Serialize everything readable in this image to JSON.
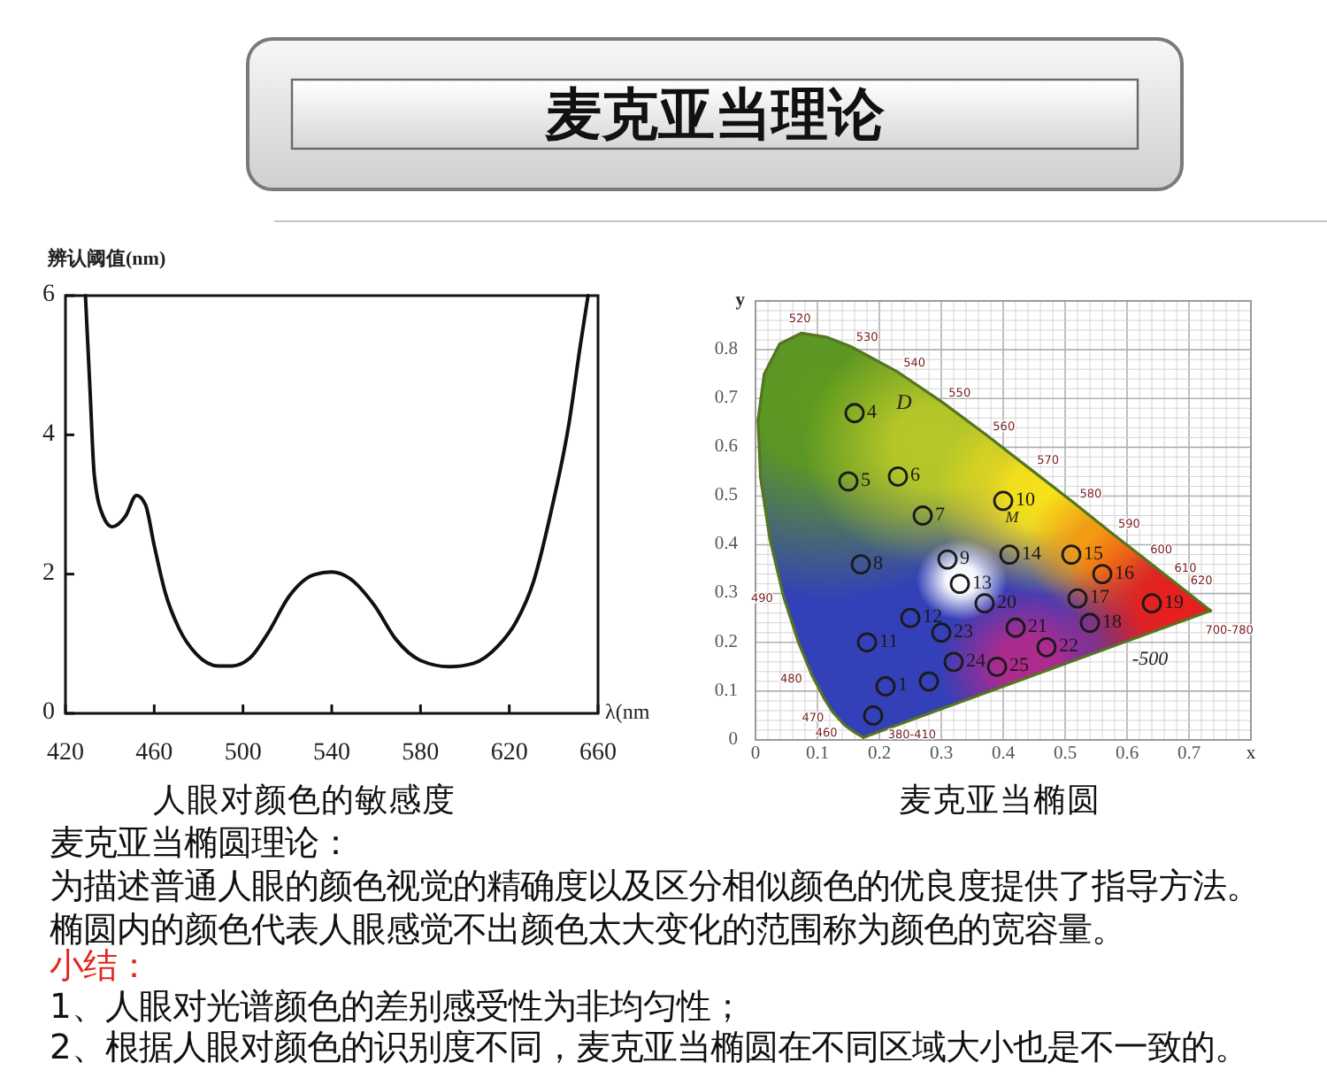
{
  "chart_data": [
    {
      "type": "other",
      "title": "麦克亚当理论"
    },
    {
      "type": "line",
      "title": "人眼对颜色的敏感度",
      "xlabel": "λ(nm",
      "ylabel": "辨认阈值(nm)",
      "x": [
        429,
        431,
        433,
        437,
        441,
        447,
        452,
        456,
        460,
        465,
        471,
        479,
        489,
        495,
        503,
        511,
        521,
        532,
        540,
        548,
        559,
        569,
        580,
        593,
        604,
        615,
        623,
        631,
        639,
        647,
        652,
        655.5
      ],
      "values": [
        6,
        4.69,
        3.42,
        2.83,
        2.68,
        2.83,
        3.13,
        3.0,
        2.41,
        1.73,
        1.23,
        0.85,
        0.68,
        0.68,
        0.79,
        1.14,
        1.69,
        1.99,
        2.03,
        1.94,
        1.56,
        1.06,
        0.76,
        0.67,
        0.72,
        0.97,
        1.31,
        1.9,
        2.92,
        4.18,
        5.28,
        6
      ],
      "color": "#111111",
      "xlim": [
        420,
        660
      ],
      "ylim": [
        0,
        6
      ],
      "xticks": [
        420,
        460,
        500,
        540,
        580,
        620,
        660
      ],
      "yticks": [
        0,
        2,
        4,
        6
      ]
    },
    {
      "type": "scatter",
      "title": "麦克亚当椭圆",
      "xlabel": "x",
      "ylabel": "y",
      "xlim": [
        0,
        0.8
      ],
      "ylim": [
        0,
        0.9
      ],
      "grid": true,
      "xticks": [
        0,
        {
          "value": 0.02,
          "label": null
        },
        {
          "value": 0.04,
          "label": null
        },
        {
          "value": 0.06,
          "label": null
        },
        {
          "value": 0.08,
          "label": null
        },
        0.1,
        {
          "value": 0.12,
          "label": null
        },
        {
          "value": 0.14,
          "label": null
        },
        {
          "value": 0.16,
          "label": null
        },
        {
          "value": 0.18,
          "label": null
        },
        0.2,
        {
          "value": 0.22,
          "label": null
        },
        {
          "value": 0.24,
          "label": null
        },
        {
          "value": 0.26,
          "label": null
        },
        {
          "value": 0.28,
          "label": null
        },
        0.3,
        {
          "value": 0.32,
          "label": null
        },
        {
          "value": 0.34,
          "label": null
        },
        {
          "value": 0.36,
          "label": null
        },
        {
          "value": 0.38,
          "label": null
        },
        0.4,
        {
          "value": 0.42,
          "label": null
        },
        {
          "value": 0.44,
          "label": null
        },
        {
          "value": 0.46,
          "label": null
        },
        {
          "value": 0.48,
          "label": null
        },
        0.5,
        {
          "value": 0.52,
          "label": null
        },
        {
          "value": 0.54,
          "label": null
        },
        {
          "value": 0.56,
          "label": null
        },
        {
          "value": 0.58,
          "label": null
        },
        0.6,
        {
          "value": 0.62,
          "label": null
        },
        {
          "value": 0.64,
          "label": null
        },
        {
          "value": 0.66,
          "label": null
        },
        {
          "value": 0.68,
          "label": null
        },
        0.7,
        {
          "value": 0.72,
          "label": null
        },
        {
          "value": 0.74,
          "label": null
        },
        {
          "value": 0.76,
          "label": null
        },
        {
          "value": 0.78,
          "label": null
        },
        {
          "value": 0.8,
          "label": null
        }
      ],
      "yticks": [
        0,
        {
          "value": 0.02,
          "label": null
        },
        {
          "value": 0.04,
          "label": null
        },
        {
          "value": 0.06,
          "label": null
        },
        {
          "value": 0.08,
          "label": null
        },
        0.1,
        {
          "value": 0.12,
          "label": null
        },
        {
          "value": 0.14,
          "label": null
        },
        {
          "value": 0.16,
          "label": null
        },
        {
          "value": 0.18,
          "label": null
        },
        0.2,
        {
          "value": 0.22,
          "label": null
        },
        {
          "value": 0.24,
          "label": null
        },
        {
          "value": 0.26,
          "label": null
        },
        {
          "value": 0.28,
          "label": null
        },
        0.3,
        {
          "value": 0.32,
          "label": null
        },
        {
          "value": 0.34,
          "label": null
        },
        {
          "value": 0.36,
          "label": null
        },
        {
          "value": 0.38,
          "label": null
        },
        0.4,
        {
          "value": 0.42,
          "label": null
        },
        {
          "value": 0.44,
          "label": null
        },
        {
          "value": 0.46,
          "label": null
        },
        {
          "value": 0.48,
          "label": null
        },
        0.5,
        {
          "value": 0.52,
          "label": null
        },
        {
          "value": 0.54,
          "label": null
        },
        {
          "value": 0.56,
          "label": null
        },
        {
          "value": 0.58,
          "label": null
        },
        0.6,
        {
          "value": 0.62,
          "label": null
        },
        {
          "value": 0.64,
          "label": null
        },
        {
          "value": 0.66,
          "label": null
        },
        {
          "value": 0.68,
          "label": null
        },
        0.7,
        {
          "value": 0.72,
          "label": null
        },
        {
          "value": 0.74,
          "label": null
        },
        {
          "value": 0.76,
          "label": null
        },
        {
          "value": 0.78,
          "label": null
        },
        0.8,
        {
          "value": 0.82,
          "label": null
        },
        {
          "value": 0.84,
          "label": null
        },
        {
          "value": 0.86,
          "label": null
        },
        {
          "value": 0.88,
          "label": null
        },
        {
          "value": 0.9,
          "label": null
        }
      ],
      "series": [
        {
          "type": "line",
          "color": "#55751f",
          "x": [
            0.174,
            0.157,
            0.144,
            0.124,
            0.11,
            0.091,
            0.069,
            0.045,
            0.023,
            0.008,
            0.004
          ],
          "values": [
            0.005,
            0.018,
            0.03,
            0.058,
            0.087,
            0.133,
            0.201,
            0.295,
            0.413,
            0.538,
            0.655
          ]
        },
        {
          "type": "line",
          "color": "#55751f",
          "x": [
            0.004,
            0.014,
            0.039,
            0.074,
            0.114,
            0.155,
            0.23,
            0.302,
            0.373,
            0.444,
            0.513,
            0.575,
            0.627,
            0.666,
            0.692,
            0.719,
            0.735
          ],
          "values": [
            0.655,
            0.75,
            0.812,
            0.834,
            0.826,
            0.806,
            0.754,
            0.692,
            0.625,
            0.555,
            0.487,
            0.424,
            0.373,
            0.334,
            0.308,
            0.281,
            0.265
          ]
        },
        {
          "type": "line",
          "color": "#55751f",
          "x": [
            0.735,
            0.174
          ],
          "values": [
            0.265,
            0.005
          ]
        },
        {
          "type": "scatter",
          "color": "#1a1a1a",
          "marker": "circle",
          "x": [
            0.21,
            0.19,
            0.28,
            0.16,
            0.15,
            0.23,
            0.27,
            0.17,
            0.31,
            0.4,
            0.18,
            0.25,
            0.33,
            0.41,
            0.51,
            0.56,
            0.52,
            0.54,
            0.64,
            0.37,
            0.42,
            0.47,
            0.3,
            0.32,
            0.39
          ],
          "values": [
            0.11,
            0.05,
            0.12,
            0.67,
            0.53,
            0.54,
            0.46,
            0.36,
            0.37,
            0.49,
            0.2,
            0.25,
            0.32,
            0.38,
            0.38,
            0.34,
            0.29,
            0.24,
            0.28,
            0.28,
            0.23,
            0.19,
            0.22,
            0.16,
            0.15
          ]
        }
      ],
      "annotations": [
        {
          "text": "520",
          "x": 0.074,
          "y": 0.834
        },
        {
          "text": "530",
          "x": 0.155,
          "y": 0.806
        },
        {
          "text": "540",
          "x": 0.23,
          "y": 0.754
        },
        {
          "text": "550",
          "x": 0.302,
          "y": 0.692
        },
        {
          "text": "560",
          "x": 0.373,
          "y": 0.625
        },
        {
          "text": "570",
          "x": 0.444,
          "y": 0.555
        },
        {
          "text": "580",
          "x": 0.513,
          "y": 0.487
        },
        {
          "text": "590",
          "x": 0.575,
          "y": 0.424
        },
        {
          "text": "600",
          "x": 0.627,
          "y": 0.373
        },
        {
          "text": "610",
          "x": 0.666,
          "y": 0.334
        },
        {
          "text": "620",
          "x": 0.692,
          "y": 0.308
        },
        {
          "text": "700-780",
          "x": 0.735,
          "y": 0.265
        },
        {
          "text": "490",
          "x": 0.045,
          "y": 0.295
        },
        {
          "text": "480",
          "x": 0.091,
          "y": 0.133
        },
        {
          "text": "470",
          "x": 0.124,
          "y": 0.058
        },
        {
          "text": "460",
          "x": 0.144,
          "y": 0.03
        },
        {
          "text": "380-410",
          "x": 0.174,
          "y": 0.005
        },
        {
          "text": "1",
          "x": 0.21,
          "y": 0.11
        },
        {
          "text": "4",
          "x": 0.16,
          "y": 0.67
        },
        {
          "text": "5",
          "x": 0.15,
          "y": 0.53
        },
        {
          "text": "6",
          "x": 0.23,
          "y": 0.54
        },
        {
          "text": "7",
          "x": 0.27,
          "y": 0.46
        },
        {
          "text": "8",
          "x": 0.17,
          "y": 0.36
        },
        {
          "text": "9",
          "x": 0.31,
          "y": 0.37
        },
        {
          "text": "10",
          "x": 0.4,
          "y": 0.49
        },
        {
          "text": "11",
          "x": 0.18,
          "y": 0.2
        },
        {
          "text": "12",
          "x": 0.25,
          "y": 0.25
        },
        {
          "text": "13",
          "x": 0.33,
          "y": 0.32
        },
        {
          "text": "14",
          "x": 0.41,
          "y": 0.38
        },
        {
          "text": "15",
          "x": 0.51,
          "y": 0.38
        },
        {
          "text": "16",
          "x": 0.56,
          "y": 0.34
        },
        {
          "text": "17",
          "x": 0.52,
          "y": 0.29
        },
        {
          "text": "18",
          "x": 0.54,
          "y": 0.24
        },
        {
          "text": "19",
          "x": 0.64,
          "y": 0.28
        },
        {
          "text": "20",
          "x": 0.37,
          "y": 0.28
        },
        {
          "text": "21",
          "x": 0.42,
          "y": 0.23
        },
        {
          "text": "22",
          "x": 0.47,
          "y": 0.19
        },
        {
          "text": "23",
          "x": 0.3,
          "y": 0.22
        },
        {
          "text": "24",
          "x": 0.32,
          "y": 0.16
        },
        {
          "text": "25",
          "x": 0.39,
          "y": 0.15
        },
        "-500",
        "D",
        "M"
      ]
    },
    {
      "type": "other",
      "title": "麦克亚当椭圆理论：",
      "annotations": [
        "为描述普通人眼的颜色视觉的精确度以及区分相似颜色的优良度提供了指导方法。",
        "椭圆内的颜色代表人眼感觉不出颜色太大变化的范围称为颜色的宽容量。"
      ]
    },
    {
      "type": "other",
      "title": "小结：",
      "color": "#e3251c",
      "annotations": [
        "1、人眼对光谱颜色的差别感受性为非均匀性；",
        "2、根据人眼对颜色的识别度不同，麦克亚当椭圆在不同区域大小也是不一致的。"
      ]
    }
  ]
}
